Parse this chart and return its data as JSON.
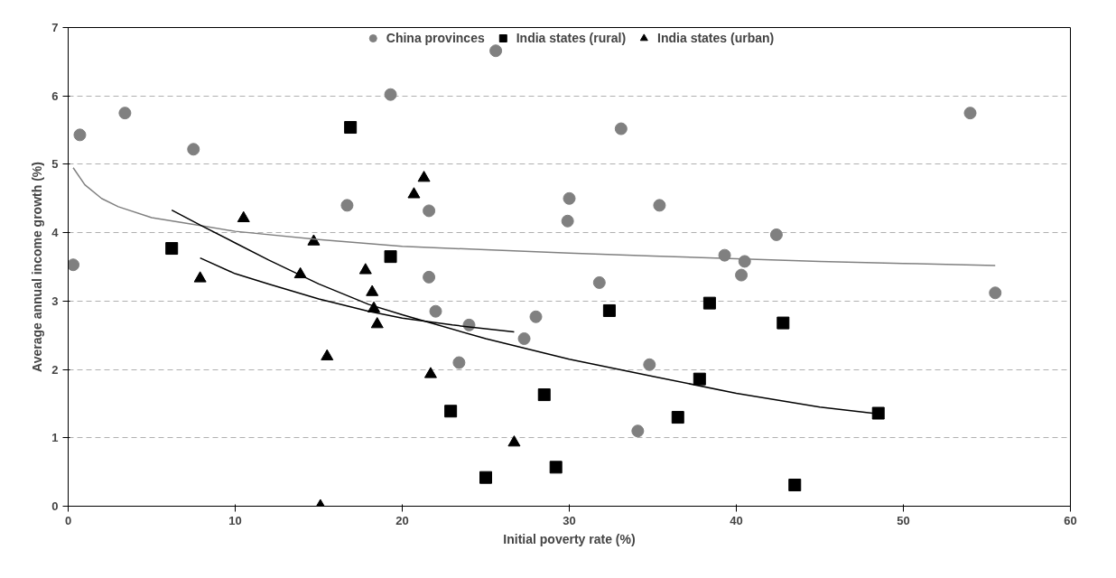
{
  "chart_data": {
    "type": "scatter",
    "xlabel": "Initial poverty rate (%)",
    "ylabel": "Average annual income growth (%)",
    "xlim": [
      0,
      60
    ],
    "ylim": [
      0,
      7
    ],
    "xticks": [
      0,
      10,
      20,
      30,
      40,
      50,
      60
    ],
    "yticks": [
      0,
      1,
      2,
      3,
      4,
      5,
      6,
      7
    ],
    "grid": "y",
    "legend": "top",
    "series": [
      {
        "name": "China provinces",
        "color": "#808080",
        "marker": "circle",
        "x": [
          0.3,
          0.7,
          3.4,
          7.5,
          16.7,
          19.3,
          21.6,
          21.6,
          22,
          23.4,
          24,
          25.6,
          27.3,
          28,
          29.9,
          30,
          31.8,
          33.1,
          34.1,
          34.8,
          35.4,
          39.3,
          40.3,
          40.5,
          42.4,
          54,
          55.5
        ],
        "values": [
          3.53,
          5.43,
          5.75,
          5.22,
          4.4,
          6.02,
          4.32,
          3.35,
          2.85,
          2.1,
          2.65,
          6.66,
          2.45,
          2.77,
          4.17,
          4.5,
          3.27,
          5.52,
          1.1,
          2.07,
          4.4,
          3.67,
          3.38,
          3.58,
          3.97,
          5.75,
          3.12
        ]
      },
      {
        "name": "India states (rural)",
        "color": "#000000",
        "marker": "square",
        "x": [
          6.2,
          16.9,
          19.3,
          22.9,
          25,
          28.5,
          29.2,
          32.4,
          36.5,
          37.8,
          38.4,
          42.8,
          43.5,
          48.5
        ],
        "values": [
          3.77,
          5.54,
          3.65,
          1.39,
          0.42,
          1.63,
          0.57,
          2.86,
          1.3,
          1.86,
          2.97,
          2.68,
          0.31,
          1.36
        ]
      },
      {
        "name": "India states (urban)",
        "color": "#000000",
        "marker": "triangle",
        "x": [
          7.9,
          10.5,
          13.9,
          14.7,
          15.1,
          15.5,
          17.8,
          18.2,
          18.3,
          18.5,
          20.7,
          21.3,
          21.7,
          26.7
        ],
        "values": [
          3.33,
          4.21,
          3.39,
          3.87,
          0.0,
          2.19,
          3.45,
          3.13,
          2.89,
          2.66,
          4.56,
          4.8,
          1.93,
          0.93
        ]
      },
      {
        "type": "line",
        "color": "#808080",
        "x": [
          0.3,
          1,
          2,
          3,
          5,
          8,
          10,
          15,
          20,
          25,
          30,
          35,
          40,
          45,
          50,
          55.5
        ],
        "values": [
          4.95,
          4.7,
          4.5,
          4.38,
          4.22,
          4.1,
          4.02,
          3.9,
          3.8,
          3.75,
          3.7,
          3.66,
          3.62,
          3.58,
          3.55,
          3.52
        ]
      },
      {
        "type": "line",
        "color": "#000000",
        "x": [
          6.2,
          8,
          10,
          12,
          15,
          18,
          20,
          25,
          30,
          35,
          40,
          45,
          48.5
        ],
        "values": [
          4.33,
          4.1,
          3.85,
          3.6,
          3.25,
          2.95,
          2.8,
          2.45,
          2.15,
          1.9,
          1.65,
          1.45,
          1.35
        ]
      },
      {
        "type": "line",
        "color": "#000000",
        "x": [
          7.9,
          10,
          12,
          15,
          18,
          20,
          23,
          26.7
        ],
        "values": [
          3.63,
          3.4,
          3.25,
          3.03,
          2.85,
          2.75,
          2.65,
          2.55
        ]
      }
    ]
  }
}
